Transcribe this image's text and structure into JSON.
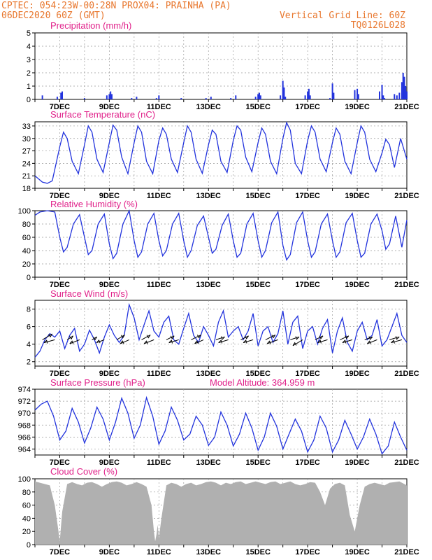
{
  "header": {
    "line1": "CPTEC:   054:23W-00:28N   PROX04: PRAINHA (PA)",
    "line2": "06DEC2020 60Z (GMT)",
    "grid_note": "Vertical Grid Line: 60Z",
    "code": "TQ0126L028"
  },
  "colors": {
    "header": "#e8772e",
    "title": "#e0218a",
    "series": "#2233dd",
    "cloud": "#b0b0b0",
    "grid": "#999999",
    "arrow": "#000000"
  },
  "x_axis": {
    "start": "06DEC 06Z",
    "end": "21DEC 00Z",
    "ticks": [
      {
        "label": "7DEC",
        "day": 7
      },
      {
        "label": "9DEC",
        "day": 9
      },
      {
        "label": "11DEC",
        "day": 11
      },
      {
        "label": "13DEC",
        "day": 13
      },
      {
        "label": "15DEC",
        "day": 15
      },
      {
        "label": "17DEC",
        "day": 17
      },
      {
        "label": "19DEC",
        "day": 19
      },
      {
        "label": "21DEC",
        "day": 21
      }
    ],
    "grid_every_day": true
  },
  "chart_data": [
    {
      "id": "precip",
      "type": "bar",
      "title": "Precipitation (mm/h)",
      "ylim": [
        0,
        5
      ],
      "yticks": [
        0,
        1,
        2,
        3,
        4,
        5
      ],
      "grid": true,
      "x": [
        6.3,
        6.9,
        7.05,
        7.1,
        8.0,
        8.9,
        9.0,
        9.05,
        9.1,
        9.9,
        10.1,
        10.9,
        11.0,
        11.9,
        12.9,
        13.1,
        13.9,
        14.1,
        14.9,
        15.0,
        15.05,
        15.1,
        15.9,
        16.0,
        16.05,
        16.1,
        16.9,
        17.0,
        17.05,
        17.1,
        17.9,
        18.0,
        18.05,
        18.9,
        19.0,
        19.05,
        19.9,
        20.0,
        20.05,
        20.1,
        20.5,
        20.6,
        20.7,
        20.8,
        20.85,
        20.9,
        20.95,
        21.0
      ],
      "values": [
        0.3,
        0.2,
        0.5,
        0.6,
        0.1,
        0.3,
        0.4,
        0.6,
        0.4,
        0.1,
        0.2,
        0.1,
        0.3,
        0.1,
        0.1,
        0.2,
        0.1,
        0.3,
        0.2,
        0.4,
        0.5,
        0.3,
        0.3,
        1.4,
        0.9,
        0.2,
        0.3,
        0.6,
        0.8,
        0.3,
        0.1,
        1.2,
        0.5,
        0.7,
        0.8,
        0.4,
        0.6,
        1.1,
        0.3,
        0.1,
        0.4,
        0.3,
        0.5,
        1.3,
        2.0,
        1.7,
        1.0,
        0.6
      ]
    },
    {
      "id": "temp",
      "type": "line",
      "title": "Surface Temperature (nC)",
      "ylim": [
        18,
        34
      ],
      "yticks": [
        18,
        21,
        24,
        27,
        30,
        33
      ],
      "grid": true,
      "x": [
        6.0,
        6.3,
        6.5,
        6.7,
        7.0,
        7.15,
        7.3,
        7.5,
        7.75,
        8.0,
        8.15,
        8.3,
        8.5,
        8.75,
        9.0,
        9.15,
        9.3,
        9.5,
        9.75,
        10.0,
        10.15,
        10.3,
        10.5,
        10.75,
        11.0,
        11.15,
        11.3,
        11.5,
        11.75,
        12.0,
        12.15,
        12.3,
        12.5,
        12.75,
        13.0,
        13.15,
        13.3,
        13.5,
        13.75,
        14.0,
        14.15,
        14.3,
        14.5,
        14.75,
        15.0,
        15.15,
        15.3,
        15.5,
        15.75,
        16.0,
        16.15,
        16.3,
        16.5,
        16.75,
        17.0,
        17.15,
        17.3,
        17.5,
        17.75,
        18.0,
        18.15,
        18.3,
        18.5,
        18.75,
        19.0,
        19.15,
        19.3,
        19.5,
        19.75,
        20.0,
        20.15,
        20.3,
        20.5,
        20.75,
        21.0
      ],
      "values": [
        21.0,
        19.5,
        19.2,
        19.8,
        28.0,
        31.5,
        30.0,
        24.5,
        21.5,
        28.5,
        33.0,
        31.5,
        25.0,
        21.8,
        29.0,
        33.2,
        32.0,
        25.5,
        21.5,
        29.0,
        33.0,
        31.5,
        24.5,
        21.5,
        29.5,
        32.5,
        31.0,
        25.0,
        21.8,
        29.0,
        33.0,
        31.5,
        25.0,
        21.6,
        28.5,
        32.0,
        31.0,
        24.5,
        21.8,
        29.5,
        33.0,
        32.0,
        25.5,
        22.0,
        29.0,
        32.5,
        31.0,
        24.5,
        21.5,
        30.0,
        33.8,
        32.0,
        24.0,
        21.5,
        29.5,
        33.0,
        31.5,
        25.0,
        22.0,
        29.0,
        32.5,
        31.0,
        24.5,
        21.5,
        29.0,
        33.0,
        31.5,
        25.0,
        22.0,
        26.5,
        29.8,
        28.5,
        23.0,
        30.0,
        25.0
      ]
    },
    {
      "id": "rh",
      "type": "line",
      "title": "Relative Humidity (%)",
      "ylim": [
        0,
        100
      ],
      "yticks": [
        0,
        20,
        40,
        60,
        80,
        100
      ],
      "grid": true,
      "x": [
        6.0,
        6.2,
        6.5,
        6.8,
        7.0,
        7.15,
        7.3,
        7.55,
        7.8,
        8.0,
        8.15,
        8.3,
        8.55,
        8.8,
        9.0,
        9.15,
        9.3,
        9.55,
        9.8,
        10.0,
        10.15,
        10.3,
        10.55,
        10.8,
        11.0,
        11.15,
        11.3,
        11.55,
        11.8,
        12.0,
        12.15,
        12.3,
        12.55,
        12.8,
        13.0,
        13.15,
        13.3,
        13.55,
        13.8,
        14.0,
        14.15,
        14.3,
        14.55,
        14.8,
        15.0,
        15.15,
        15.3,
        15.55,
        15.8,
        16.0,
        16.15,
        16.3,
        16.55,
        16.8,
        17.0,
        17.15,
        17.3,
        17.55,
        17.8,
        18.0,
        18.15,
        18.3,
        18.55,
        18.8,
        19.0,
        19.15,
        19.3,
        19.55,
        19.8,
        20.0,
        20.15,
        20.3,
        20.55,
        20.8,
        21.0
      ],
      "values": [
        93,
        98,
        100,
        98,
        60,
        38,
        45,
        80,
        94,
        60,
        34,
        40,
        80,
        95,
        50,
        28,
        36,
        80,
        100,
        55,
        30,
        38,
        80,
        96,
        55,
        32,
        40,
        80,
        96,
        55,
        30,
        40,
        78,
        92,
        60,
        36,
        42,
        78,
        95,
        55,
        30,
        36,
        80,
        96,
        55,
        30,
        40,
        82,
        98,
        48,
        26,
        34,
        82,
        98,
        55,
        30,
        38,
        80,
        95,
        55,
        30,
        38,
        82,
        96,
        55,
        30,
        36,
        80,
        95,
        70,
        42,
        50,
        92,
        45,
        86
      ]
    },
    {
      "id": "wind",
      "type": "line",
      "title": "Surface Wind (m/s)",
      "ylim": [
        1.5,
        9
      ],
      "yticks": [
        2,
        4,
        6,
        8
      ],
      "grid": true,
      "x": [
        6.0,
        6.2,
        6.4,
        6.6,
        6.8,
        7.0,
        7.2,
        7.4,
        7.6,
        7.8,
        8.0,
        8.2,
        8.4,
        8.6,
        8.8,
        9.0,
        9.2,
        9.4,
        9.6,
        9.8,
        10.0,
        10.2,
        10.4,
        10.6,
        10.8,
        11.0,
        11.2,
        11.4,
        11.6,
        11.8,
        12.0,
        12.2,
        12.4,
        12.6,
        12.8,
        13.0,
        13.2,
        13.4,
        13.6,
        13.8,
        14.0,
        14.2,
        14.4,
        14.6,
        14.8,
        15.0,
        15.2,
        15.4,
        15.6,
        15.8,
        16.0,
        16.2,
        16.4,
        16.6,
        16.8,
        17.0,
        17.2,
        17.4,
        17.6,
        17.8,
        18.0,
        18.2,
        18.4,
        18.6,
        18.8,
        19.0,
        19.2,
        19.4,
        19.6,
        19.8,
        20.0,
        20.2,
        20.4,
        20.6,
        20.8,
        21.0
      ],
      "values": [
        2.5,
        3.2,
        4.5,
        5.2,
        4.8,
        5.5,
        3.5,
        5.0,
        5.8,
        3.2,
        4.0,
        5.6,
        4.5,
        3.0,
        4.8,
        6.2,
        5.0,
        4.2,
        5.0,
        8.5,
        7.0,
        4.5,
        6.2,
        7.8,
        5.5,
        4.8,
        6.5,
        7.2,
        4.5,
        4.0,
        5.8,
        7.5,
        5.0,
        4.2,
        6.0,
        5.0,
        3.8,
        6.5,
        7.8,
        4.8,
        5.5,
        6.0,
        4.5,
        5.5,
        7.5,
        3.8,
        5.5,
        6.0,
        4.2,
        5.2,
        7.8,
        4.0,
        6.5,
        7.2,
        3.5,
        5.5,
        6.0,
        4.0,
        5.8,
        6.8,
        3.0,
        5.5,
        7.0,
        4.2,
        3.2,
        5.5,
        6.5,
        4.5,
        5.0,
        6.8,
        3.8,
        4.5,
        6.0,
        7.5,
        5.0,
        4.2
      ],
      "vectors": {
        "x": [
          6.3,
          6.8,
          7.3,
          7.8,
          8.3,
          8.8,
          9.3,
          9.8,
          10.3,
          10.8,
          11.3,
          11.8,
          12.3,
          12.8,
          13.3,
          13.8,
          14.3,
          14.8,
          15.3,
          15.8,
          16.3,
          16.8,
          17.3,
          17.8,
          18.3,
          18.8,
          19.3,
          19.8,
          20.3,
          20.8
        ],
        "u": [
          1.0,
          -1.1,
          0.6,
          -1.0,
          0.5,
          -0.8,
          0.8,
          -0.9,
          0.9,
          -1.0,
          0.8,
          -1.0,
          1.0,
          -0.9,
          0.9,
          -1.0,
          0.8,
          -1.0,
          1.0,
          -1.1,
          0.9,
          -1.0,
          0.8,
          -1.0,
          0.9,
          -1.0,
          0.8,
          -1.0,
          1.0,
          -1.1
        ],
        "v": [
          0.6,
          -0.3,
          0.4,
          -0.4,
          0.3,
          -0.3,
          0.5,
          -0.4,
          0.5,
          -0.4,
          0.4,
          -0.3,
          0.5,
          -0.4,
          0.3,
          -0.3,
          0.4,
          -0.3,
          0.5,
          -0.4,
          0.3,
          -0.6,
          0.4,
          -0.3,
          0.4,
          -0.3,
          0.3,
          -0.4,
          0.3,
          -0.3
        ]
      }
    },
    {
      "id": "pressure",
      "type": "line",
      "title": "Surface Pressure (hPa)",
      "annotation": "Model Altitude:  364.959  m",
      "ylim": [
        963,
        974
      ],
      "yticks": [
        964,
        966,
        968,
        970,
        972,
        974
      ],
      "grid": true,
      "x": [
        6.0,
        6.25,
        6.5,
        6.75,
        7.0,
        7.25,
        7.5,
        7.75,
        8.0,
        8.25,
        8.5,
        8.75,
        9.0,
        9.25,
        9.5,
        9.75,
        10.0,
        10.25,
        10.5,
        10.75,
        11.0,
        11.25,
        11.5,
        11.75,
        12.0,
        12.25,
        12.5,
        12.75,
        13.0,
        13.25,
        13.5,
        13.75,
        14.0,
        14.25,
        14.5,
        14.75,
        15.0,
        15.25,
        15.5,
        15.75,
        16.0,
        16.25,
        16.5,
        16.75,
        17.0,
        17.25,
        17.5,
        17.75,
        18.0,
        18.25,
        18.5,
        18.75,
        19.0,
        19.25,
        19.5,
        19.75,
        20.0,
        20.25,
        20.5,
        20.75,
        21.0
      ],
      "values": [
        970.5,
        971.5,
        972.0,
        969.5,
        965.5,
        967.0,
        970.8,
        968.5,
        965.0,
        967.5,
        971.0,
        969.0,
        965.5,
        968.5,
        972.5,
        970.0,
        965.8,
        968.0,
        972.6,
        969.5,
        964.8,
        967.0,
        971.0,
        968.8,
        965.5,
        966.5,
        969.5,
        968.0,
        964.6,
        966.0,
        970.2,
        968.0,
        964.5,
        966.5,
        970.0,
        967.5,
        963.8,
        966.0,
        970.0,
        967.8,
        964.0,
        966.5,
        969.0,
        967.0,
        963.5,
        965.5,
        969.5,
        967.5,
        963.5,
        965.5,
        968.8,
        966.5,
        964.0,
        966.0,
        969.0,
        966.5,
        963.2,
        964.5,
        968.5,
        966.0,
        963.8
      ]
    },
    {
      "id": "cloud",
      "type": "area",
      "title": "Cloud Cover (%)",
      "ylim": [
        0,
        100
      ],
      "yticks": [
        0,
        20,
        40,
        60,
        80,
        100
      ],
      "grid": true,
      "x": [
        6.0,
        6.2,
        6.4,
        6.6,
        6.8,
        6.95,
        7.0,
        7.1,
        7.3,
        7.5,
        7.7,
        7.9,
        8.1,
        8.3,
        8.5,
        8.7,
        8.9,
        9.1,
        9.3,
        9.5,
        9.7,
        9.9,
        10.1,
        10.3,
        10.5,
        10.7,
        10.8,
        10.85,
        10.9,
        10.95,
        11.0,
        11.1,
        11.3,
        11.5,
        11.7,
        11.9,
        12.1,
        12.3,
        12.5,
        12.7,
        12.9,
        13.1,
        13.3,
        13.5,
        13.7,
        13.9,
        14.1,
        14.3,
        14.5,
        14.7,
        14.9,
        15.1,
        15.3,
        15.5,
        15.7,
        15.9,
        16.1,
        16.3,
        16.5,
        16.7,
        16.9,
        17.1,
        17.3,
        17.5,
        17.7,
        17.9,
        18.1,
        18.3,
        18.5,
        18.7,
        18.9,
        19.1,
        19.3,
        19.5,
        19.7,
        19.9,
        20.1,
        20.3,
        20.5,
        20.7,
        20.9,
        21.0
      ],
      "values": [
        96,
        94,
        92,
        90,
        60,
        20,
        5,
        50,
        92,
        95,
        92,
        90,
        94,
        95,
        92,
        88,
        92,
        95,
        96,
        94,
        90,
        92,
        95,
        92,
        88,
        60,
        20,
        5,
        15,
        30,
        10,
        40,
        90,
        94,
        92,
        88,
        92,
        94,
        90,
        92,
        95,
        96,
        94,
        90,
        94,
        92,
        95,
        96,
        92,
        94,
        96,
        94,
        92,
        95,
        96,
        92,
        94,
        96,
        92,
        90,
        92,
        95,
        94,
        80,
        60,
        85,
        92,
        94,
        90,
        45,
        20,
        60,
        88,
        92,
        94,
        92,
        90,
        94,
        95,
        96,
        92,
        90
      ]
    }
  ]
}
